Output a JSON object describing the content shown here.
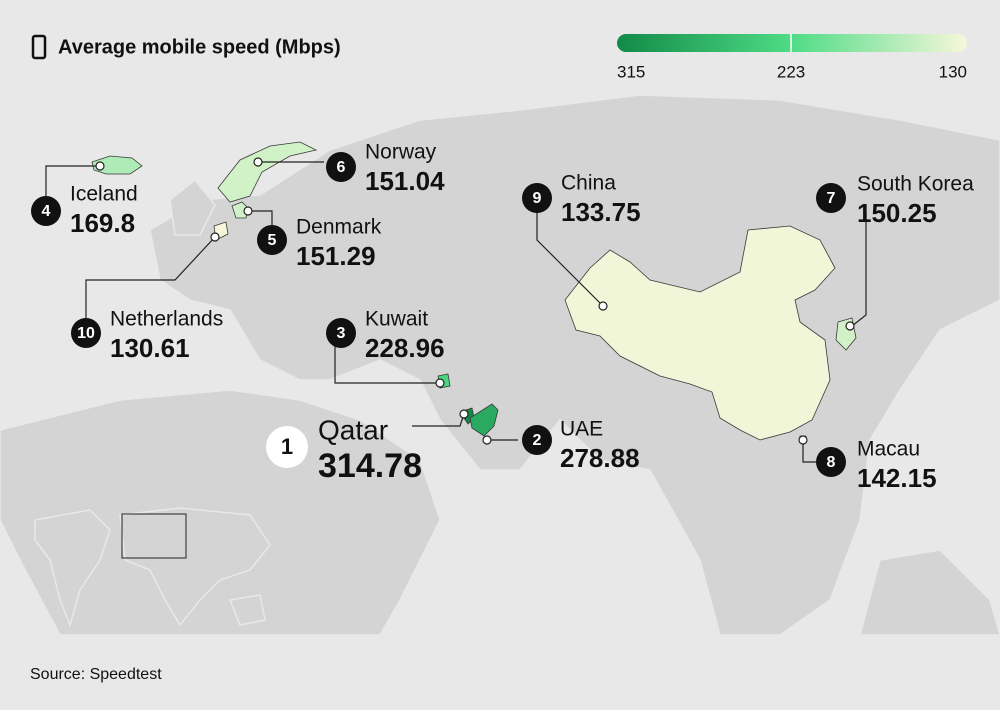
{
  "title": "Average mobile speed (Mbps)",
  "legend": {
    "lim": [
      315,
      130
    ],
    "ticks": [
      315,
      223,
      130
    ],
    "colors": [
      "#118a48",
      "#4fdc86",
      "#f7f7da"
    ]
  },
  "countries": [
    {
      "rank": 1,
      "name": "Qatar",
      "value": 314.78
    },
    {
      "rank": 2,
      "name": "UAE",
      "value": 278.88
    },
    {
      "rank": 3,
      "name": "Kuwait",
      "value": 228.96
    },
    {
      "rank": 4,
      "name": "Iceland",
      "value": 169.8
    },
    {
      "rank": 5,
      "name": "Denmark",
      "value": 151.29
    },
    {
      "rank": 6,
      "name": "Norway",
      "value": 151.04
    },
    {
      "rank": 7,
      "name": "South Korea",
      "value": 150.25
    },
    {
      "rank": 8,
      "name": "Macau",
      "value": 142.15
    },
    {
      "rank": 9,
      "name": "China",
      "value": 133.75
    },
    {
      "rank": 10,
      "name": "Netherlands",
      "value": 130.61
    }
  ],
  "source": "Source: Speedtest"
}
